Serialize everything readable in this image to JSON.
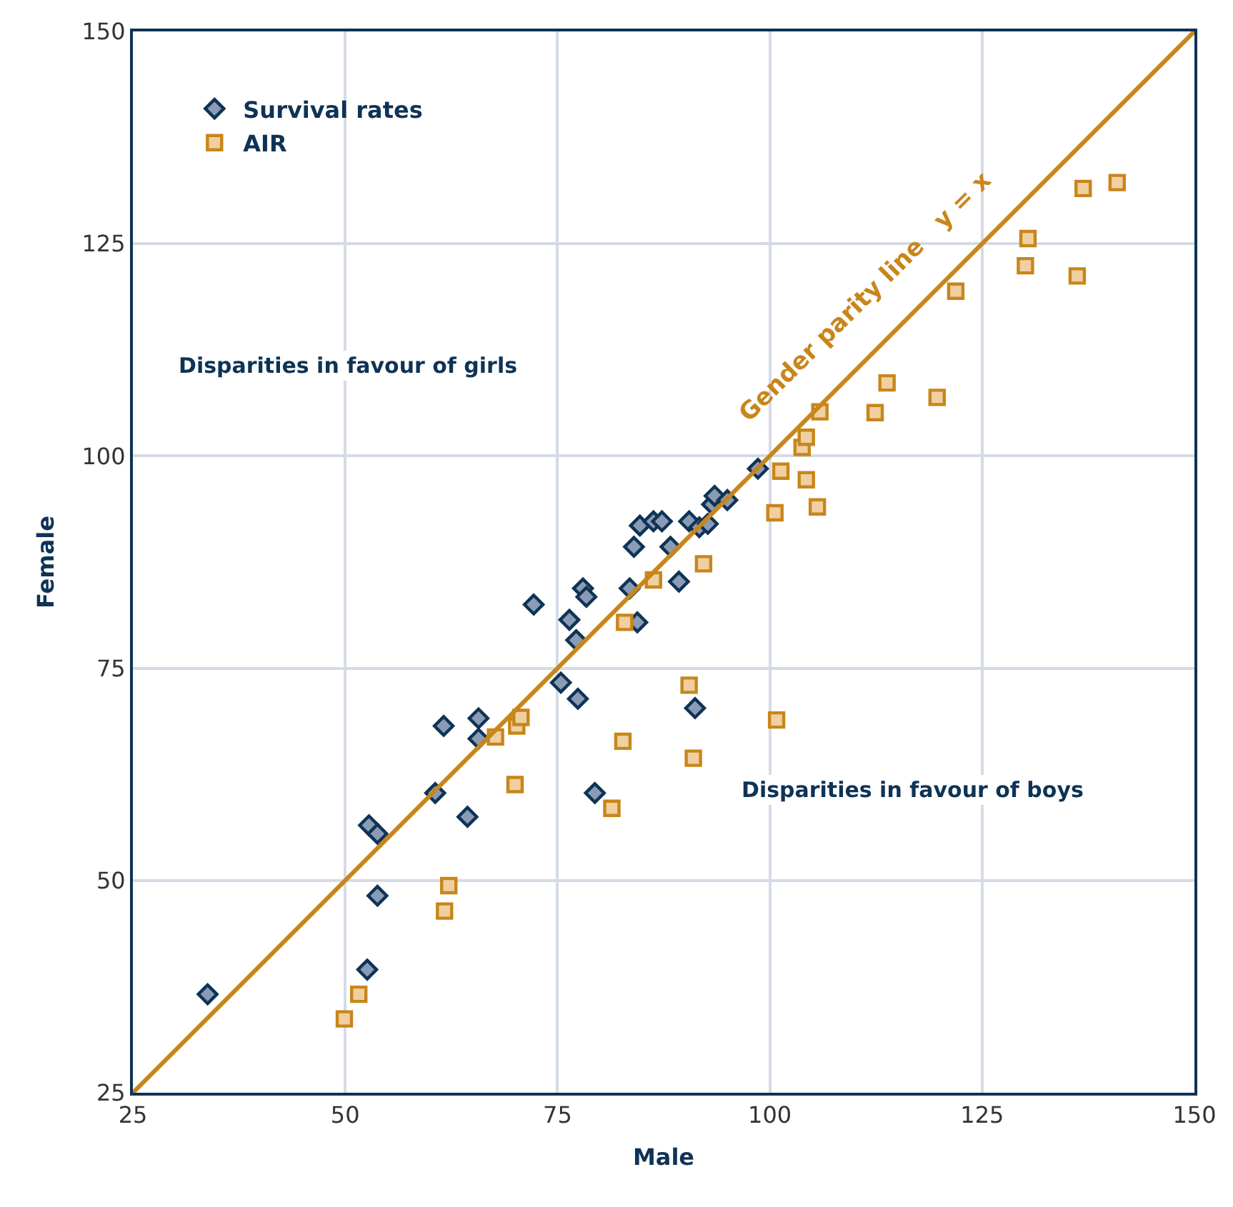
{
  "chart_data": {
    "type": "scatter",
    "xlabel": "Male",
    "ylabel": "Female",
    "xlim": [
      25,
      150
    ],
    "xticks": [
      25,
      50,
      75,
      100,
      125,
      150
    ],
    "ylim": [
      25,
      150
    ],
    "yticks": [
      25,
      50,
      75,
      100,
      125,
      150
    ],
    "grid": true,
    "legend": "top left",
    "annotations": [
      "Disparities in favour of girls",
      "Disparities in favour of boys"
    ],
    "series": [
      {
        "name": "Survival rates",
        "marker": "diamond",
        "color": "#8a9bb5",
        "x": [
          33.8,
          52.6,
          53.8,
          52.8,
          53.8,
          60.6,
          64.4,
          61.6,
          65.7,
          65.7,
          72.2,
          75.4,
          76.4,
          77.2,
          77.4,
          78.0,
          78.4,
          79.4,
          83.5,
          84.0,
          84.4,
          84.7,
          86.3,
          87.3,
          88.3,
          89.3,
          90.5,
          91.2,
          91.7,
          92.7,
          93.2,
          93.5,
          95.0,
          98.6
        ],
        "values": [
          36.6,
          39.5,
          48.2,
          56.5,
          55.5,
          60.3,
          57.5,
          68.2,
          66.7,
          69.1,
          82.5,
          73.3,
          80.7,
          78.3,
          71.4,
          84.4,
          83.4,
          60.3,
          84.4,
          89.3,
          80.4,
          91.8,
          92.3,
          92.3,
          89.3,
          85.2,
          92.3,
          70.3,
          91.6,
          92.0,
          94.3,
          95.3,
          94.8,
          98.5
        ]
      },
      {
        "name": "AIR",
        "marker": "square",
        "color": "#f0cfa0",
        "x": [
          49.9,
          51.6,
          61.7,
          62.2,
          70.0,
          67.7,
          70.2,
          70.7,
          81.4,
          82.7,
          82.9,
          86.3,
          92.2,
          90.5,
          91.0,
          100.8,
          100.6,
          101.3,
          103.8,
          104.3,
          104.3,
          105.6,
          105.9,
          112.4,
          113.8,
          119.7,
          121.9,
          130.1,
          130.4,
          136.2,
          136.9,
          140.9
        ],
        "values": [
          33.7,
          36.6,
          46.4,
          49.4,
          61.3,
          66.9,
          68.2,
          69.2,
          58.5,
          66.4,
          80.4,
          85.4,
          87.3,
          73.0,
          64.4,
          68.9,
          93.3,
          98.2,
          101.0,
          102.2,
          97.2,
          94.0,
          105.2,
          105.1,
          108.6,
          106.9,
          119.4,
          122.4,
          125.6,
          121.2,
          131.5,
          132.2
        ]
      },
      {
        "name": "Gender parity line   y = x",
        "type": "line",
        "marker": "none",
        "line_style": "solid",
        "color": "#c8861a",
        "x": [
          25,
          150
        ],
        "values": [
          25,
          150
        ]
      }
    ]
  }
}
